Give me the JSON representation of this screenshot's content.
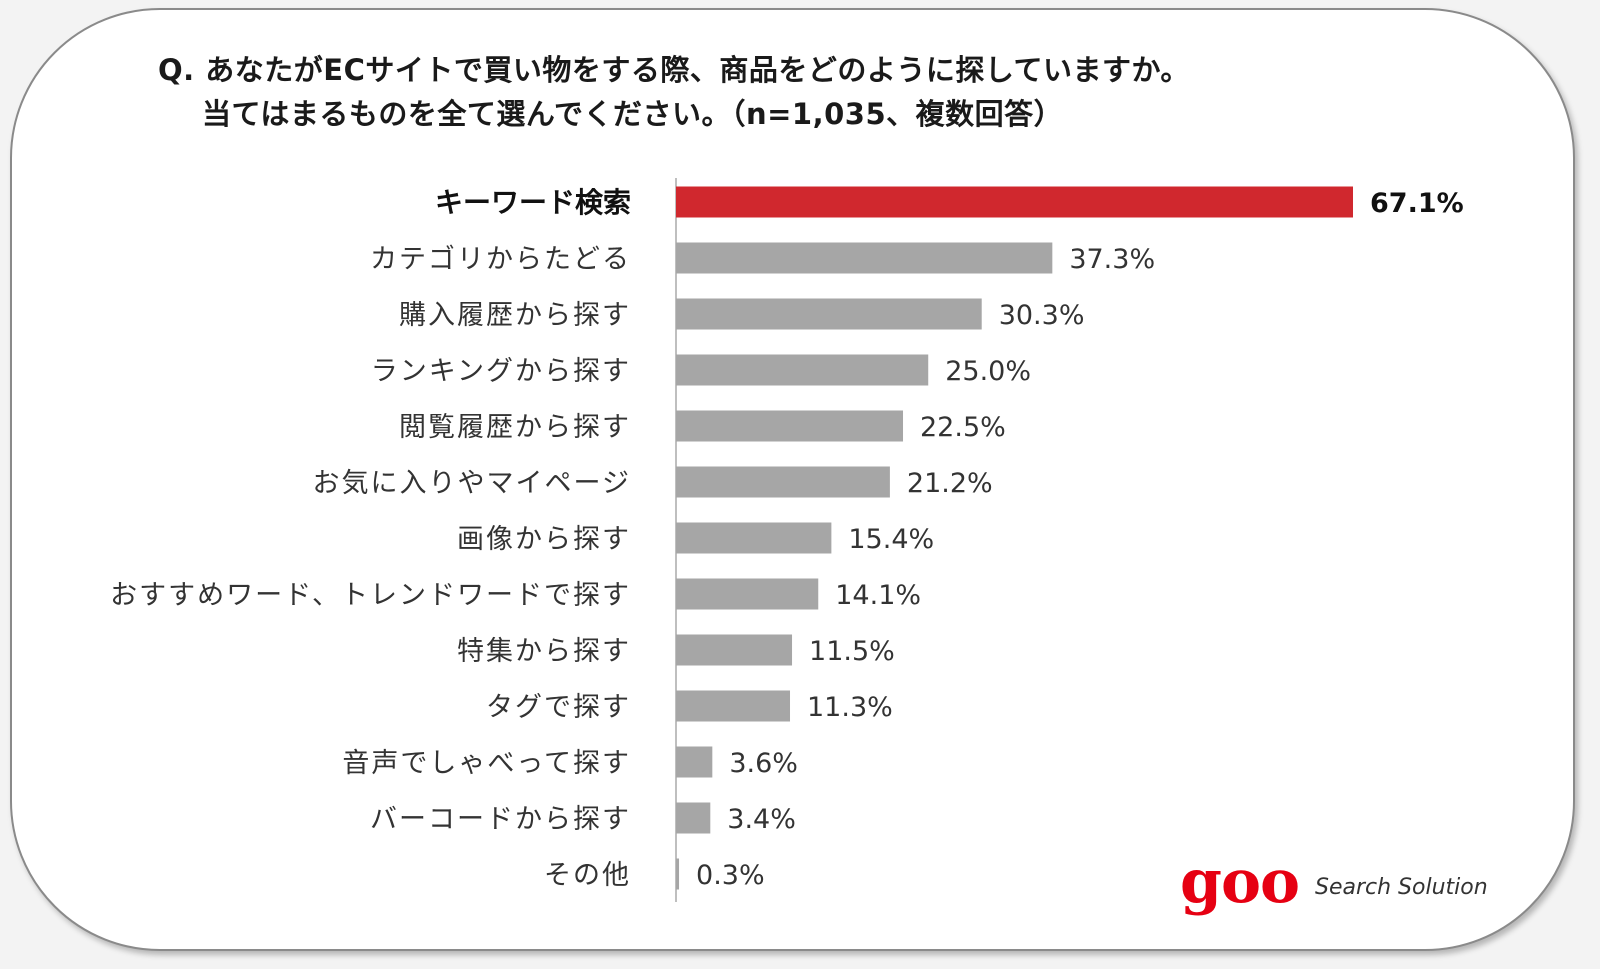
{
  "title": {
    "line1": "Q. あなたがECサイトで買い物をする際、商品をどのように探していますか。",
    "line2": "当てはまるものを全て選んでください。（n=1,035、複数回答）"
  },
  "brand": {
    "logo": "goo",
    "tagline": "Search Solution"
  },
  "colors": {
    "highlight": "#d0282e",
    "bar": "#a6a6a6",
    "axis": "#bfbfbf"
  },
  "chart_data": {
    "type": "bar",
    "orientation": "horizontal",
    "unit": "%",
    "xlim": [
      0,
      70
    ],
    "grid": false,
    "highlight_index": 0,
    "categories": [
      "キーワード検索",
      "カテゴリからたどる",
      "購入履歴から探す",
      "ランキングから探す",
      "閲覧履歴から探す",
      "お気に入りやマイページ",
      "画像から探す",
      "おすすめワード、トレンドワードで探す",
      "特集から探す",
      "タグで探す",
      "音声でしゃべって探す",
      "バーコードから探す",
      "その他"
    ],
    "values": [
      67.1,
      37.3,
      30.3,
      25.0,
      22.5,
      21.2,
      15.4,
      14.1,
      11.5,
      11.3,
      3.6,
      3.4,
      0.3
    ],
    "labels": [
      "67.1%",
      "37.3%",
      "30.3%",
      "25.0%",
      "22.5%",
      "21.2%",
      "15.4%",
      "14.1%",
      "11.5%",
      "11.3%",
      "3.6%",
      "3.4%",
      "0.3%"
    ]
  }
}
